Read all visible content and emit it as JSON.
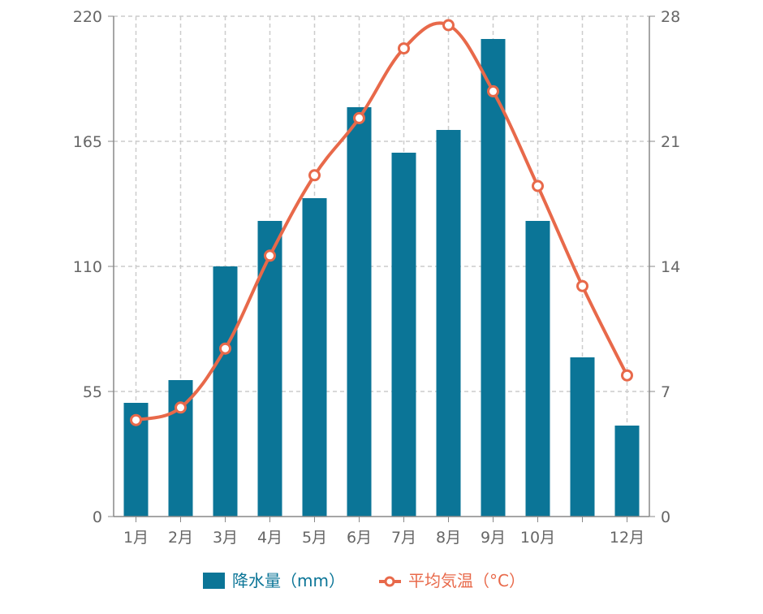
{
  "chart_data": {
    "type": "bar+line",
    "categories": [
      "1月",
      "2月",
      "3月",
      "4月",
      "5月",
      "6月",
      "7月",
      "8月",
      "9月",
      "10月",
      "",
      "12月"
    ],
    "series": [
      {
        "name": "降水量（mm）",
        "type": "bar",
        "axis": "left",
        "color": "#0b7597",
        "values": [
          50,
          60,
          110,
          130,
          140,
          180,
          160,
          170,
          210,
          130,
          70,
          40
        ]
      },
      {
        "name": "平均気温（°C）",
        "type": "line",
        "axis": "right",
        "color": "#e8694a",
        "values": [
          5.4,
          6.1,
          9.4,
          14.6,
          19.1,
          22.3,
          26.2,
          27.5,
          23.8,
          18.5,
          12.9,
          7.9
        ]
      }
    ],
    "y_left": {
      "min": 0,
      "max": 220,
      "ticks": [
        "0",
        "55",
        "110",
        "165",
        "220"
      ]
    },
    "y_right": {
      "min": 0,
      "max": 28,
      "ticks": [
        "0",
        "7",
        "14",
        "21",
        "28"
      ]
    },
    "grid": true,
    "legend": "bottom-center"
  }
}
